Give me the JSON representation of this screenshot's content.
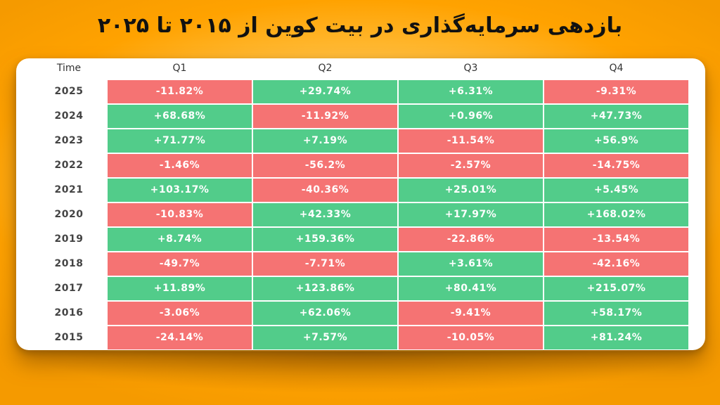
{
  "title": "بازدهی سرمایه‌گذاری در بیت کوین از ۲۰۱۵ تا ۲۰۲۵",
  "colors": {
    "positive": "#52cc8a",
    "negative": "#f57373",
    "background": "#ffa200"
  },
  "chart_data": {
    "type": "table",
    "row_header": "Time",
    "columns": [
      "Q1",
      "Q2",
      "Q3",
      "Q4"
    ],
    "rows": [
      {
        "year": "2025",
        "values": [
          "-11.82%",
          "+29.74%",
          "+6.31%",
          "-9.31%"
        ]
      },
      {
        "year": "2024",
        "values": [
          "+68.68%",
          "-11.92%",
          "+0.96%",
          "+47.73%"
        ]
      },
      {
        "year": "2023",
        "values": [
          "+71.77%",
          "+7.19%",
          "-11.54%",
          "+56.9%"
        ]
      },
      {
        "year": "2022",
        "values": [
          "-1.46%",
          "-56.2%",
          "-2.57%",
          "-14.75%"
        ]
      },
      {
        "year": "2021",
        "values": [
          "+103.17%",
          "-40.36%",
          "+25.01%",
          "+5.45%"
        ]
      },
      {
        "year": "2020",
        "values": [
          "-10.83%",
          "+42.33%",
          "+17.97%",
          "+168.02%"
        ]
      },
      {
        "year": "2019",
        "values": [
          "+8.74%",
          "+159.36%",
          "-22.86%",
          "-13.54%"
        ]
      },
      {
        "year": "2018",
        "values": [
          "-49.7%",
          "-7.71%",
          "+3.61%",
          "-42.16%"
        ]
      },
      {
        "year": "2017",
        "values": [
          "+11.89%",
          "+123.86%",
          "+80.41%",
          "+215.07%"
        ]
      },
      {
        "year": "2016",
        "values": [
          "-3.06%",
          "+62.06%",
          "-9.41%",
          "+58.17%"
        ]
      },
      {
        "year": "2015",
        "values": [
          "-24.14%",
          "+7.57%",
          "-10.05%",
          "+81.24%"
        ]
      }
    ]
  }
}
